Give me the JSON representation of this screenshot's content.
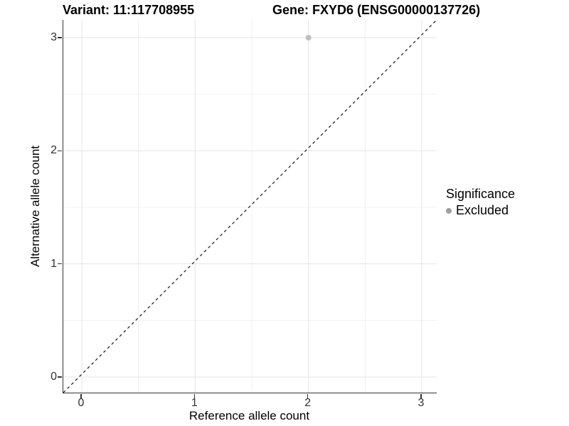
{
  "header": {
    "variant_title": "Variant: 11:117708955",
    "gene_title": "Gene: FXYD6 (ENSG00000137726)"
  },
  "legend": {
    "title": "Significance",
    "items": [
      {
        "label": "Excluded",
        "marker_color": "#9f9f9f"
      }
    ]
  },
  "chart_data": {
    "type": "scatter",
    "title": "Variant: 11:117708955 / Gene: FXYD6 (ENSG00000137726)",
    "xlabel": "Reference allele count",
    "ylabel": "Alternative allele count",
    "xlim": [
      -0.16,
      3.16
    ],
    "ylim": [
      -0.16,
      3.16
    ],
    "xticks": [
      "0",
      "1",
      "2",
      "3"
    ],
    "yticks": [
      "0",
      "1",
      "2",
      "3"
    ],
    "xtick_values": [
      0,
      1,
      2,
      3
    ],
    "ytick_values": [
      0,
      1,
      2,
      3
    ],
    "minor_grid_values": [
      0.5,
      1.5,
      2.5
    ],
    "grid": "major and minor, light gray, on white panel",
    "legend_position": "right",
    "series": [
      {
        "name": "Excluded",
        "color": "#bfbfbf",
        "marker_size_px": 8,
        "points": [
          [
            2,
            3
          ]
        ]
      }
    ],
    "reference_line": {
      "type": "identity (y = x)",
      "style": "dashed",
      "color": "#000000"
    }
  },
  "style": {
    "axis_line_color": "#333333",
    "major_grid_color": "#e5e5e5",
    "minor_grid_color": "#f0f0f0",
    "tick_label_color": "#303030",
    "background": "#ffffff"
  }
}
